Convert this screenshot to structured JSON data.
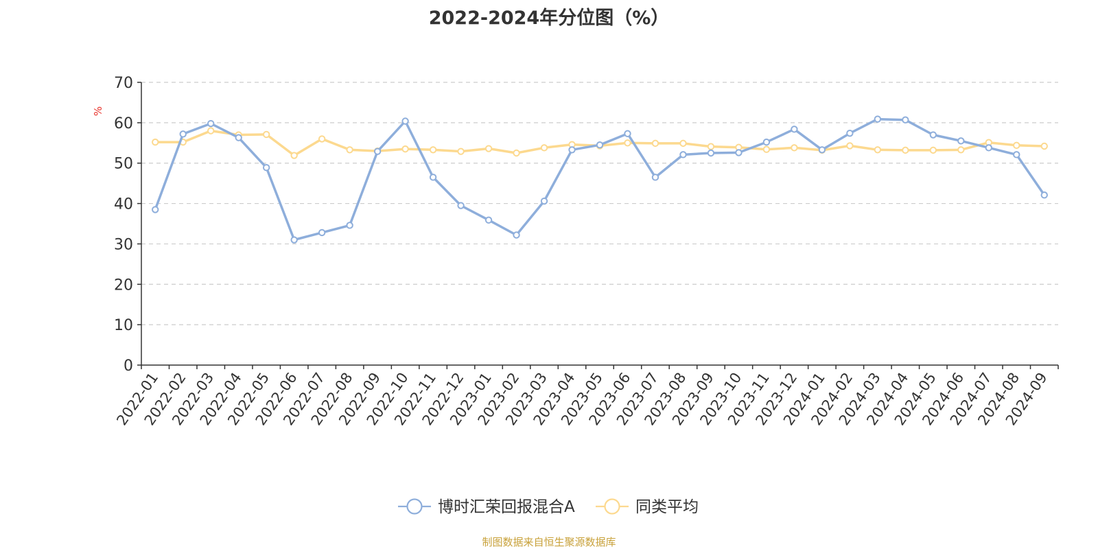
{
  "chart_data": {
    "type": "line",
    "title": "2022-2024年分位图（%）",
    "ylabel": "%",
    "ylim": [
      0,
      70
    ],
    "yticks": [
      "0",
      "10",
      "20",
      "30",
      "40",
      "50",
      "60",
      "70"
    ],
    "grid": true,
    "legend_position": "bottom",
    "categories": [
      "2022-01",
      "2022-02",
      "2022-03",
      "2022-04",
      "2022-05",
      "2022-06",
      "2022-07",
      "2022-08",
      "2022-09",
      "2022-10",
      "2022-11",
      "2022-12",
      "2023-01",
      "2023-02",
      "2023-03",
      "2023-04",
      "2023-05",
      "2023-06",
      "2023-07",
      "2023-08",
      "2023-09",
      "2023-10",
      "2023-11",
      "2023-12",
      "2024-01",
      "2024-02",
      "2024-03",
      "2024-04",
      "2024-05",
      "2024-06",
      "2024-07",
      "2024-08",
      "2024-09"
    ],
    "series": [
      {
        "name": "博时汇荣回报混合A",
        "color": "#8eaedb",
        "values": [
          38.5,
          57.2,
          59.8,
          56.3,
          48.9,
          31.0,
          32.8,
          34.6,
          52.9,
          60.4,
          46.5,
          39.5,
          35.9,
          32.2,
          40.6,
          53.3,
          54.5,
          57.3,
          46.5,
          52.1,
          52.5,
          52.6,
          55.2,
          58.4,
          53.3,
          57.4,
          60.9,
          60.7,
          57.0,
          55.5,
          53.8,
          52.1,
          42.1
        ]
      },
      {
        "name": "同类平均",
        "color": "#fcd98f",
        "values": [
          55.2,
          55.2,
          58.0,
          57.0,
          57.1,
          51.9,
          56.0,
          53.3,
          53.0,
          53.5,
          53.3,
          52.9,
          53.6,
          52.5,
          53.8,
          54.6,
          54.3,
          55.0,
          54.9,
          54.9,
          54.1,
          53.9,
          53.4,
          53.8,
          53.2,
          54.3,
          53.3,
          53.2,
          53.2,
          53.3,
          55.1,
          54.4,
          54.2
        ]
      }
    ]
  },
  "source_note": "制图数据来自恒生聚源数据库"
}
